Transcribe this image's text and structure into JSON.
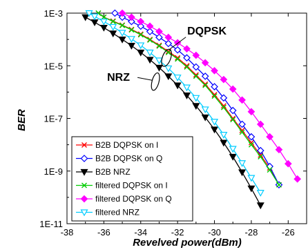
{
  "chart_data": {
    "type": "line",
    "title": "",
    "xlabel": "Revelved power(dBm)",
    "ylabel": "BER",
    "xlim": [
      -38,
      -25
    ],
    "ylim": [
      1e-11,
      0.001
    ],
    "ylog": true,
    "xticks": [
      -38,
      -36,
      -34,
      -32,
      -30,
      -28,
      -26
    ],
    "xticklabels": [
      "-38",
      "-36",
      "-34",
      "-32",
      "-30",
      "-28",
      "-26"
    ],
    "yticks": [
      1e-11,
      1e-09,
      1e-07,
      1e-05,
      0.001
    ],
    "yticklabels": [
      "1E-11",
      "1E-9",
      "1E-7",
      "1E-5",
      "1E-3"
    ],
    "grid": false,
    "legend_position": "bottom-left",
    "series": [
      {
        "name": "B2B DQPSK on I",
        "color": "#ff0000",
        "marker": "x",
        "x": [
          -36.3,
          -36,
          -35.5,
          -35,
          -34.5,
          -34,
          -33.5,
          -33,
          -32.5,
          -32,
          -31.5,
          -31,
          -30.5,
          -30,
          -29.5,
          -29,
          -28.5,
          -28,
          -27.5,
          -27,
          -26.5
        ],
        "y": [
          0.001,
          0.0007,
          0.0005,
          0.00035,
          0.00024,
          0.00016,
          0.0001,
          6e-05,
          3.5e-05,
          2e-05,
          1e-05,
          4.5e-06,
          2e-06,
          8e-07,
          3e-07,
          1e-07,
          3.5e-08,
          1.2e-08,
          4e-09,
          1.3e-09,
          3e-10
        ]
      },
      {
        "name": "B2B DQPSK on Q",
        "color": "#0000ff",
        "marker": "diamond-open",
        "x": [
          -35.4,
          -35,
          -34.5,
          -34,
          -33.5,
          -33,
          -32.5,
          -32,
          -31.5,
          -31,
          -30.5,
          -30,
          -29.5,
          -29,
          -28.5,
          -28,
          -27.5,
          -27,
          -26.5
        ],
        "y": [
          0.001,
          0.0007,
          0.00048,
          0.00032,
          0.0002,
          0.00012,
          7e-05,
          4e-05,
          2e-05,
          9e-06,
          4e-06,
          1.6e-06,
          6e-07,
          2e-07,
          6e-08,
          2e-08,
          6e-09,
          1.5e-09,
          3e-10
        ]
      },
      {
        "name": "B2B NRZ",
        "color": "#000000",
        "marker": "triangle-down",
        "x": [
          -37,
          -36.5,
          -36,
          -35.5,
          -35,
          -34.5,
          -34,
          -33.5,
          -33,
          -32.5,
          -32,
          -31.5,
          -31,
          -30.5,
          -30,
          -29.5,
          -29,
          -28.5,
          -28,
          -27.5
        ],
        "y": [
          0.0007,
          0.00045,
          0.00028,
          0.00017,
          0.0001,
          5.8e-05,
          3.2e-05,
          1.7e-05,
          8.5e-06,
          4e-06,
          1.8e-06,
          7.5e-07,
          3e-07,
          1.1e-07,
          3.8e-08,
          1.2e-08,
          3.5e-09,
          9e-10,
          2.2e-10,
          5e-11
        ]
      },
      {
        "name": "filtered DQPSK on I",
        "color": "#00cc00",
        "marker": "x",
        "x": [
          -36.3,
          -36,
          -35.5,
          -35,
          -34.5,
          -34,
          -33.5,
          -33,
          -32.5,
          -32,
          -31.5,
          -31,
          -30.5,
          -30,
          -29.5,
          -29,
          -28.5,
          -28,
          -27.5,
          -27,
          -26.5
        ],
        "y": [
          0.001,
          0.0007,
          0.00048,
          0.00034,
          0.00023,
          0.00015,
          9.5e-05,
          5.6e-05,
          3.2e-05,
          1.8e-05,
          9e-06,
          4e-06,
          1.8e-06,
          7e-07,
          2.6e-07,
          9e-08,
          3e-08,
          1e-08,
          3.5e-09,
          1.1e-09,
          3e-10
        ]
      },
      {
        "name": "filtered DQPSK on Q",
        "color": "#ff00ff",
        "marker": "diamond",
        "x": [
          -35,
          -34.5,
          -34,
          -33.5,
          -33,
          -32.5,
          -32,
          -31.5,
          -31,
          -30.5,
          -30,
          -29.5,
          -29,
          -28.5,
          -28,
          -27.5,
          -27,
          -26.5,
          -26,
          -25.5
        ],
        "y": [
          0.001,
          0.0007,
          0.00048,
          0.00032,
          0.0002,
          0.00012,
          7.5e-05,
          4.4e-05,
          2.5e-05,
          1.3e-05,
          6.5e-06,
          3e-06,
          1.3e-06,
          5e-07,
          1.8e-07,
          6e-08,
          2e-08,
          6.5e-09,
          1.9e-09,
          5e-10
        ]
      },
      {
        "name": "filtered NRZ",
        "color": "#00ccff",
        "marker": "triangle-down-open",
        "x": [
          -36.8,
          -36.5,
          -36,
          -35.5,
          -35,
          -34.5,
          -34,
          -33.5,
          -33,
          -32.5,
          -32,
          -31.5,
          -31,
          -30.5,
          -30,
          -29.5,
          -29,
          -28.5,
          -28,
          -27.5
        ],
        "y": [
          0.001,
          0.00075,
          0.00048,
          0.0003,
          0.00018,
          0.000105,
          6e-05,
          3.2e-05,
          1.6e-05,
          8e-06,
          3.6e-06,
          1.5e-06,
          6e-07,
          2.2e-07,
          7.5e-08,
          2.4e-08,
          7e-09,
          2e-09,
          5.5e-10,
          1.5e-10
        ]
      }
    ],
    "annotations": [
      {
        "text": "DQPSK",
        "x": -32.6,
        "y": 2e-05
      },
      {
        "text": "NRZ",
        "x": -33.2,
        "y": 2.5e-06
      }
    ]
  }
}
